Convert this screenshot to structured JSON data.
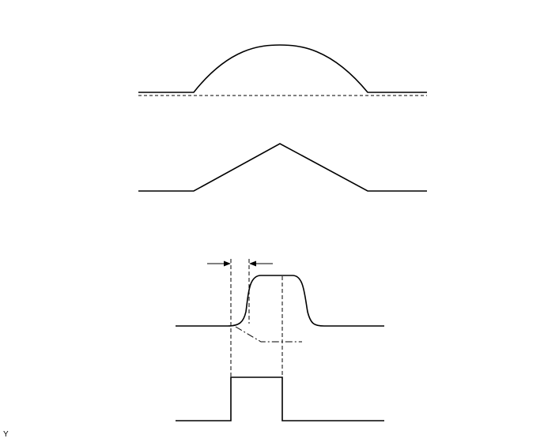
{
  "figure": {
    "corner_label": "Y"
  }
}
